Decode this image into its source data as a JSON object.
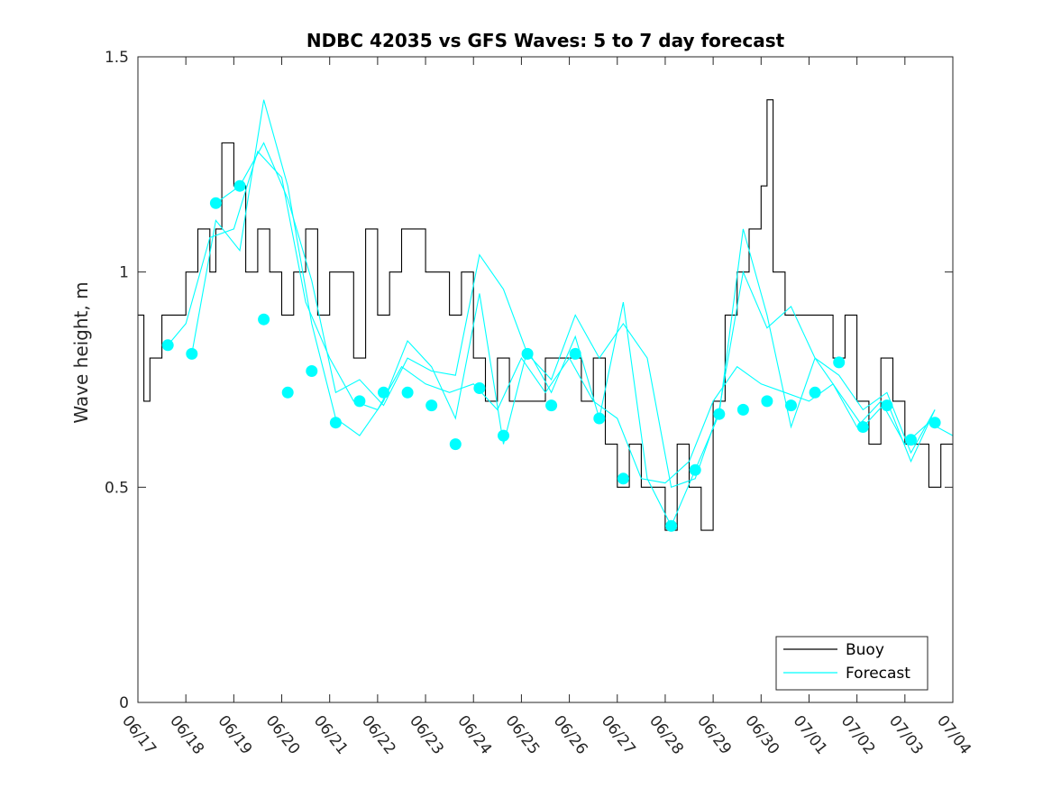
{
  "chart_data": {
    "type": "line",
    "title": "NDBC 42035 vs GFS Waves: 5 to 7 day forecast",
    "xlabel": "",
    "ylabel": "Wave height, m",
    "x_axis": {
      "kind": "date",
      "range": [
        "06/17",
        "07/04"
      ],
      "tick_labels": [
        "06/17",
        "06/18",
        "06/19",
        "06/20",
        "06/21",
        "06/22",
        "06/23",
        "06/24",
        "06/25",
        "06/26",
        "06/27",
        "06/28",
        "06/29",
        "06/30",
        "07/01",
        "07/02",
        "07/03",
        "07/04"
      ]
    },
    "ylim": [
      0,
      1.5
    ],
    "y_ticks": [
      0,
      0.5,
      1,
      1.5
    ],
    "y_tick_labels": [
      "0",
      "0.5",
      "1",
      "1.5"
    ],
    "grid": false,
    "legend_placement": "bottom-right",
    "colors": {
      "buoy": "#000000",
      "forecast": "#00ffff"
    },
    "legend": [
      {
        "label": "Buoy",
        "color": "#000000"
      },
      {
        "label": "Forecast",
        "color": "#00ffff"
      }
    ],
    "series": [
      {
        "name": "Buoy",
        "style": "stairs",
        "color": "#000000",
        "x": [
          "06/17 00:00",
          "06/17 03:00",
          "06/17 06:00",
          "06/17 09:00",
          "06/17 12:00",
          "06/17 18:00",
          "06/18 00:00",
          "06/18 06:00",
          "06/18 12:00",
          "06/18 15:00",
          "06/18 18:00",
          "06/19 00:00",
          "06/19 06:00",
          "06/19 12:00",
          "06/19 18:00",
          "06/20 00:00",
          "06/20 06:00",
          "06/20 12:00",
          "06/20 18:00",
          "06/21 00:00",
          "06/21 06:00",
          "06/21 12:00",
          "06/21 18:00",
          "06/22 00:00",
          "06/22 06:00",
          "06/22 12:00",
          "06/23 00:00",
          "06/23 06:00",
          "06/23 12:00",
          "06/23 18:00",
          "06/24 00:00",
          "06/24 06:00",
          "06/24 12:00",
          "06/24 18:00",
          "06/25 00:00",
          "06/25 12:00",
          "06/26 00:00",
          "06/26 06:00",
          "06/26 12:00",
          "06/26 18:00",
          "06/27 00:00",
          "06/27 06:00",
          "06/27 12:00",
          "06/27 18:00",
          "06/28 00:00",
          "06/28 06:00",
          "06/28 12:00",
          "06/28 18:00",
          "06/29 00:00",
          "06/29 06:00",
          "06/29 12:00",
          "06/29 18:00",
          "06/30 00:00",
          "06/30 03:00",
          "06/30 06:00",
          "06/30 12:00",
          "06/30 18:00",
          "07/01 00:00",
          "07/01 12:00",
          "07/01 18:00",
          "07/02 00:00",
          "07/02 06:00",
          "07/02 12:00",
          "07/02 18:00",
          "07/03 00:00",
          "07/03 06:00",
          "07/03 12:00",
          "07/03 18:00",
          "07/04 00:00"
        ],
        "values": [
          0.9,
          0.7,
          0.8,
          0.8,
          0.9,
          0.9,
          1.0,
          1.1,
          1.0,
          1.1,
          1.3,
          1.2,
          1.0,
          1.1,
          1.0,
          0.9,
          1.0,
          1.1,
          0.9,
          1.0,
          1.0,
          0.8,
          1.1,
          0.9,
          1.0,
          1.1,
          1.0,
          1.0,
          0.9,
          1.0,
          0.8,
          0.7,
          0.8,
          0.7,
          0.7,
          0.8,
          0.8,
          0.7,
          0.8,
          0.6,
          0.5,
          0.6,
          0.5,
          0.5,
          0.4,
          0.6,
          0.5,
          0.4,
          0.7,
          0.9,
          1.0,
          1.1,
          1.2,
          1.4,
          1.0,
          0.9,
          0.9,
          0.9,
          0.8,
          0.9,
          0.7,
          0.6,
          0.8,
          0.7,
          0.6,
          0.6,
          0.5,
          0.6,
          0.6
        ]
      },
      {
        "name": "Forecast",
        "style": "markers",
        "color": "#00ffff",
        "x": [
          "06/17 15:00",
          "06/18 03:00",
          "06/18 15:00",
          "06/19 03:00",
          "06/19 15:00",
          "06/20 03:00",
          "06/20 15:00",
          "06/21 03:00",
          "06/21 15:00",
          "06/22 03:00",
          "06/22 15:00",
          "06/23 03:00",
          "06/23 15:00",
          "06/24 03:00",
          "06/24 15:00",
          "06/25 03:00",
          "06/25 15:00",
          "06/26 03:00",
          "06/26 15:00",
          "06/27 03:00",
          "06/28 03:00",
          "06/28 15:00",
          "06/29 03:00",
          "06/29 15:00",
          "06/30 03:00",
          "06/30 15:00",
          "07/01 03:00",
          "07/01 15:00",
          "07/02 03:00",
          "07/02 15:00",
          "07/03 03:00",
          "07/03 15:00"
        ],
        "values": [
          0.83,
          0.81,
          1.16,
          1.2,
          0.89,
          0.72,
          0.77,
          0.65,
          0.7,
          0.72,
          0.72,
          0.69,
          0.6,
          0.73,
          0.62,
          0.81,
          0.69,
          0.81,
          0.66,
          0.52,
          0.41,
          0.54,
          0.67,
          0.68,
          0.7,
          0.69,
          0.72,
          0.79,
          0.64,
          0.69,
          0.61,
          0.65
        ]
      },
      {
        "name": "Forecast",
        "style": "line",
        "color": "#00ffff",
        "x": [
          "06/17 15:00",
          "06/18 00:00",
          "06/18 12:00",
          "06/19 00:00",
          "06/19 12:00",
          "06/20 00:00",
          "06/20 12:00",
          "06/21 00:00",
          "06/21 12:00",
          "06/22 00:00",
          "06/22 12:00",
          "06/23 00:00",
          "06/23 12:00",
          "06/24 00:00",
          "06/24 12:00",
          "06/25 00:00",
          "06/25 12:00",
          "06/26 00:00",
          "06/26 12:00",
          "06/27 00:00",
          "06/27 12:00",
          "06/28 00:00",
          "06/28 12:00",
          "06/29 00:00",
          "06/29 12:00",
          "06/30 00:00",
          "06/30 12:00",
          "07/01 00:00",
          "07/01 12:00",
          "07/02 00:00",
          "07/02 12:00",
          "07/03 00:00",
          "07/03 12:00",
          "07/04 00:00"
        ],
        "values": [
          0.83,
          0.88,
          1.08,
          1.1,
          1.28,
          1.22,
          0.93,
          0.8,
          0.7,
          0.68,
          0.78,
          0.74,
          0.72,
          0.74,
          0.68,
          0.8,
          0.72,
          0.8,
          0.7,
          0.66,
          0.52,
          0.51,
          0.56,
          0.7,
          0.78,
          0.74,
          0.72,
          0.7,
          0.74,
          0.64,
          0.7,
          0.6,
          0.65,
          0.62
        ]
      },
      {
        "name": "Forecast",
        "style": "line",
        "color": "#00ffff",
        "x": [
          "06/18 03:00",
          "06/18 15:00",
          "06/19 03:00",
          "06/19 15:00",
          "06/20 03:00",
          "06/20 15:00",
          "06/21 03:00",
          "06/21 15:00",
          "06/22 03:00",
          "06/22 15:00",
          "06/23 03:00",
          "06/23 15:00",
          "06/24 03:00",
          "06/24 15:00",
          "06/25 03:00",
          "06/25 15:00",
          "06/26 03:00",
          "06/26 15:00",
          "06/27 03:00",
          "06/27 15:00",
          "06/28 03:00",
          "06/28 15:00",
          "06/29 03:00",
          "06/29 15:00",
          "06/30 03:00",
          "06/30 15:00",
          "07/01 03:00",
          "07/01 15:00",
          "07/02 03:00",
          "07/02 15:00",
          "07/03 03:00",
          "07/03 15:00"
        ],
        "values": [
          0.81,
          1.12,
          1.05,
          1.4,
          1.2,
          0.88,
          0.66,
          0.62,
          0.7,
          0.84,
          0.78,
          0.66,
          0.95,
          0.6,
          0.82,
          0.72,
          0.85,
          0.66,
          0.93,
          0.52,
          0.41,
          0.54,
          0.67,
          1.1,
          0.9,
          0.64,
          0.8,
          0.72,
          0.64,
          0.7,
          0.56,
          0.68
        ]
      },
      {
        "name": "Forecast",
        "style": "line",
        "color": "#00ffff",
        "x": [
          "06/18 15:00",
          "06/19 03:00",
          "06/19 15:00",
          "06/20 03:00",
          "06/20 15:00",
          "06/21 03:00",
          "06/21 15:00",
          "06/22 03:00",
          "06/22 15:00",
          "06/23 03:00",
          "06/23 15:00",
          "06/24 03:00",
          "06/24 15:00",
          "06/25 03:00",
          "06/25 15:00",
          "06/26 03:00",
          "06/26 15:00",
          "06/27 03:00",
          "06/27 15:00",
          "06/28 03:00",
          "06/28 15:00",
          "06/29 03:00",
          "06/29 15:00",
          "06/30 03:00",
          "06/30 15:00",
          "07/01 03:00",
          "07/01 15:00",
          "07/02 03:00",
          "07/02 15:00",
          "07/03 03:00",
          "07/03 15:00"
        ],
        "values": [
          1.16,
          1.2,
          1.3,
          1.17,
          0.98,
          0.72,
          0.75,
          0.69,
          0.8,
          0.77,
          0.76,
          1.04,
          0.96,
          0.81,
          0.75,
          0.9,
          0.8,
          0.88,
          0.8,
          0.5,
          0.52,
          0.68,
          1.0,
          0.87,
          0.92,
          0.8,
          0.76,
          0.68,
          0.72,
          0.58,
          0.68
        ]
      }
    ]
  }
}
